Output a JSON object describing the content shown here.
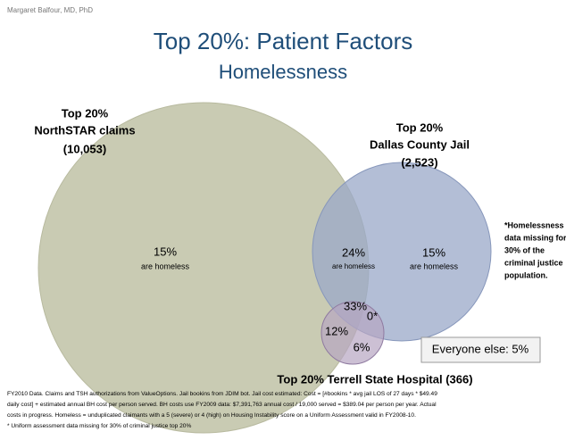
{
  "author": "Margaret Balfour, MD, PhD",
  "title": "Top 20%: Patient Factors",
  "subtitle": "Homelessness",
  "sets": {
    "northstar": {
      "label": [
        "Top 20%",
        "NorthSTAR claims",
        "(10,053)"
      ],
      "pct": "15%",
      "note": "are homeless"
    },
    "jail": {
      "label": [
        "Top 20%",
        "Dallas County Jail",
        "(2,523)"
      ],
      "pct": "15%",
      "note": "are homeless"
    },
    "hospital": {
      "label": "Top 20% Terrell State Hospital (366)"
    }
  },
  "overlaps": {
    "northstar_jail": {
      "pct": "24%",
      "note": "are homeless"
    },
    "all_three": "33%",
    "jail_hospital": "0*",
    "northstar_hospital": "12%",
    "hospital_only": "6%"
  },
  "side_note": [
    "*Homelessness",
    "data missing for",
    "30% of the",
    "criminal justice",
    "population."
  ],
  "everyone_else": "Everyone else: 5%",
  "footnote": [
    "FY2010 Data.  Claims and TSH authorizations from ValueOptions.  Jail bookins from JDIM bot.  Jail cost estimated: Cost = [#bookins * avg jail LOS of 27 days * $49.49",
    "daily cost] + estimated annual BH cost per person served.  BH costs use FY2009 data: $7,391,763 annual cost / 19,000 served = $389.04 per person per year.  Actual",
    "costs in progress.  Homeless = unduplicated claimants with a 5 (severe) or 4 (high) on Housing Instability score on a Uniform Assessment valid in FY2008-10.",
    "* Uniform assessment data missing for 30% of criminal justice top 20%"
  ]
}
